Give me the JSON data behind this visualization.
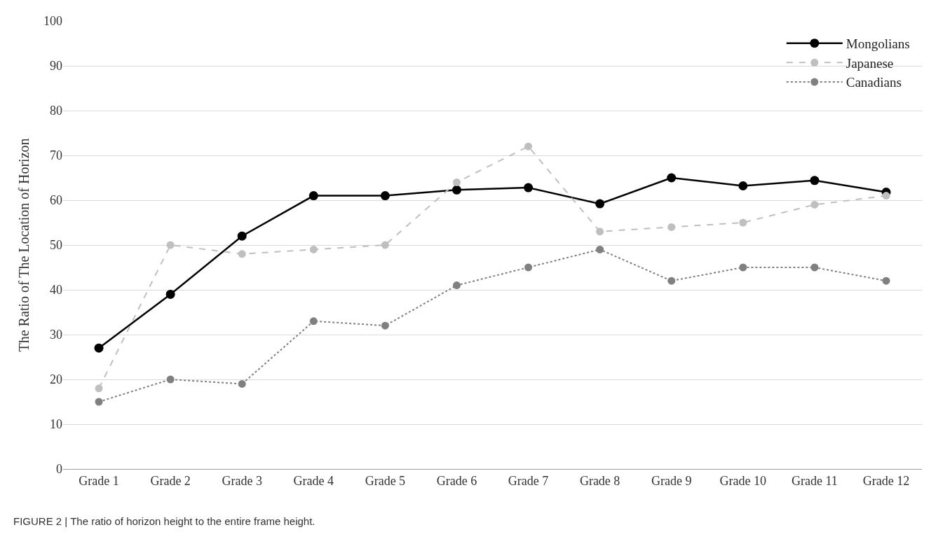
{
  "chart_data": {
    "type": "line",
    "ylabel": "The Ratio of The Location of Horizon",
    "categories": [
      "Grade 1",
      "Grade 2",
      "Grade 3",
      "Grade 4",
      "Grade 5",
      "Grade 6",
      "Grade 7",
      "Grade 8",
      "Grade 9",
      "Grade 10",
      "Grade 11",
      "Grade 12"
    ],
    "series": [
      {
        "name": "Mongolians",
        "color": "#000000",
        "line_style": "solid",
        "values": [
          27,
          39,
          52,
          61,
          61,
          62.3,
          62.8,
          59.2,
          65,
          63.2,
          64.4,
          61.8
        ]
      },
      {
        "name": "Japanese",
        "color": "#bfbfbf",
        "line_style": "dashed",
        "values": [
          18,
          50,
          48,
          49,
          50,
          64,
          72,
          53,
          54,
          55,
          59,
          61
        ]
      },
      {
        "name": "Canadians",
        "color": "#808080",
        "line_style": "dotted",
        "values": [
          15,
          20,
          19,
          33,
          32,
          41,
          45,
          49,
          42,
          45,
          45,
          42
        ]
      }
    ],
    "ylim": [
      0,
      100
    ],
    "yticks": [
      0,
      10,
      20,
      30,
      40,
      50,
      60,
      70,
      80,
      90,
      100
    ],
    "grid": "y",
    "legend": "top right",
    "marker": "circle",
    "annotations": [
      "FIGURE 2 | The ratio of horizon height to the entire frame height."
    ]
  }
}
